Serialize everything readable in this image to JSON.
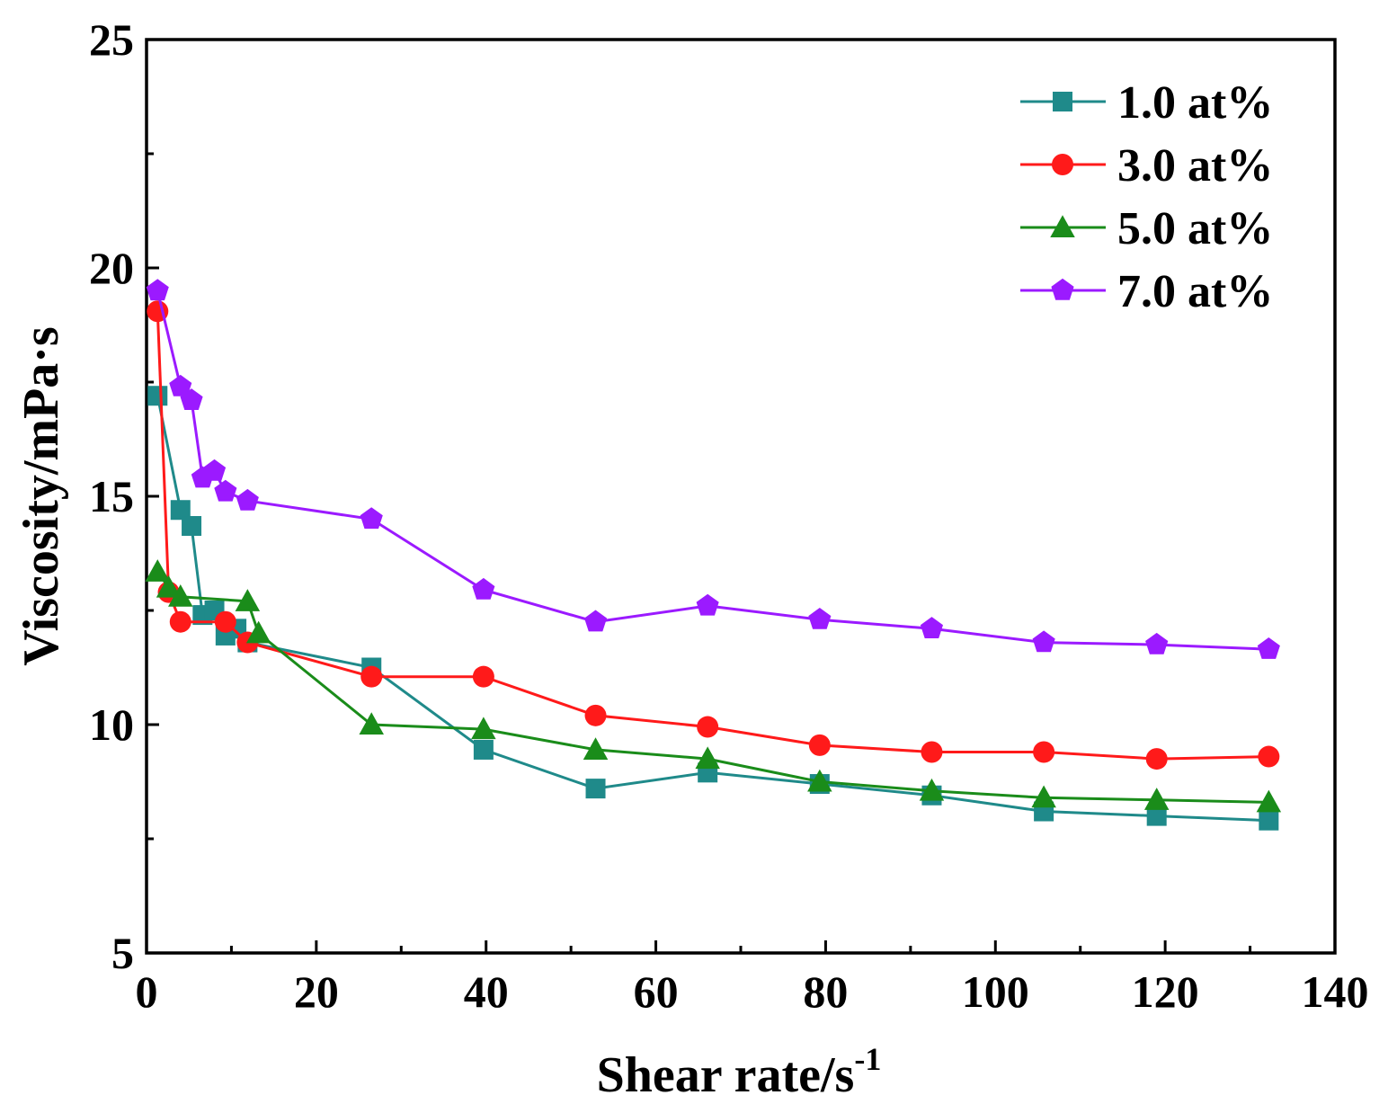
{
  "chart_data": {
    "type": "line",
    "title": "",
    "xlabel": "Shear rate/s",
    "xlabel_superscript": "-1",
    "ylabel": "Viscosity/mPa·s",
    "xlim": [
      0,
      140
    ],
    "ylim": [
      5,
      25
    ],
    "xticks": [
      0,
      20,
      40,
      60,
      80,
      100,
      120,
      140
    ],
    "yticks": [
      5,
      10,
      15,
      20,
      25
    ],
    "grid": false,
    "legend_position": "top-right",
    "series": [
      {
        "name": "1.0 at%",
        "color": "#1f8a8a",
        "marker": "square",
        "x": [
          1.3,
          4.0,
          5.3,
          6.6,
          8.0,
          9.3,
          10.6,
          11.9,
          26.5,
          39.7,
          52.9,
          66.1,
          79.3,
          92.5,
          105.7,
          119.0,
          132.2
        ],
        "y": [
          17.2,
          14.7,
          14.35,
          12.4,
          12.5,
          11.95,
          12.1,
          11.8,
          11.25,
          9.45,
          8.6,
          8.95,
          8.7,
          8.45,
          8.1,
          8.0,
          7.9
        ]
      },
      {
        "name": "3.0 at%",
        "color": "#ff1a1a",
        "marker": "circle",
        "x": [
          1.3,
          2.6,
          4.0,
          9.3,
          11.9,
          26.5,
          39.7,
          52.9,
          66.1,
          79.3,
          92.5,
          105.7,
          119.0,
          132.2
        ],
        "y": [
          19.05,
          12.9,
          12.25,
          12.25,
          11.8,
          11.05,
          11.05,
          10.2,
          9.95,
          9.55,
          9.4,
          9.4,
          9.25,
          9.3
        ]
      },
      {
        "name": "5.0 at%",
        "color": "#1a8c1a",
        "marker": "triangle",
        "x": [
          1.3,
          2.6,
          4.0,
          11.9,
          13.2,
          26.5,
          39.7,
          52.9,
          66.1,
          79.3,
          92.5,
          105.7,
          119.0,
          132.2
        ],
        "y": [
          13.35,
          13.0,
          12.8,
          12.7,
          12.0,
          10.0,
          9.9,
          9.45,
          9.25,
          8.75,
          8.55,
          8.4,
          8.35,
          8.3
        ]
      },
      {
        "name": "7.0 at%",
        "color": "#9b1aff",
        "marker": "pentagon",
        "x": [
          1.3,
          4.0,
          5.3,
          6.6,
          8.0,
          9.3,
          11.9,
          26.5,
          39.7,
          52.9,
          66.1,
          79.3,
          92.5,
          105.7,
          119.0,
          132.2
        ],
        "y": [
          19.5,
          17.4,
          17.1,
          15.4,
          15.55,
          15.1,
          14.9,
          14.5,
          12.95,
          12.25,
          12.6,
          12.3,
          12.1,
          11.8,
          11.75,
          11.65
        ]
      }
    ]
  }
}
